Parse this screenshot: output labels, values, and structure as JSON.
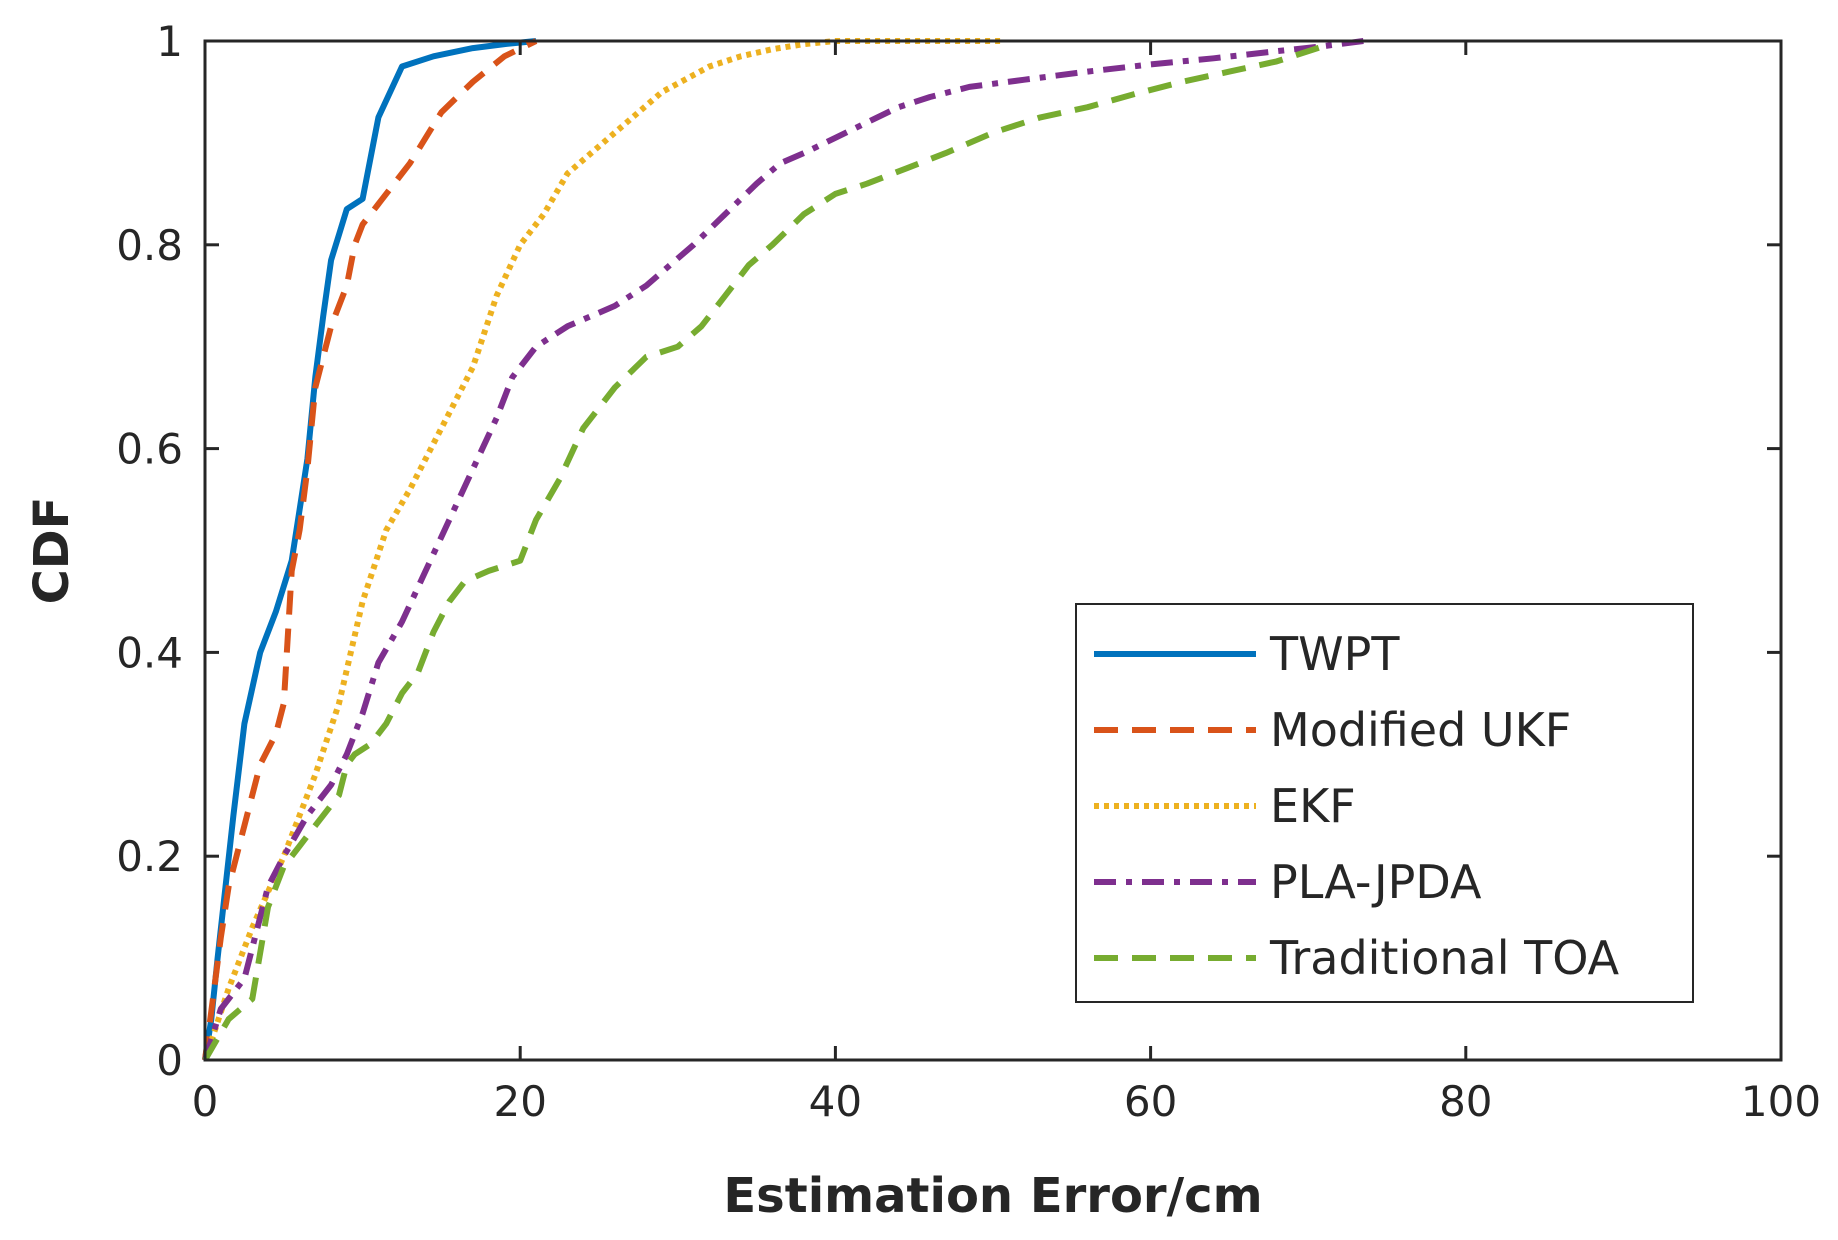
{
  "chart_data": {
    "type": "line",
    "title": "",
    "xlabel": "Estimation Error/cm",
    "ylabel": "CDF",
    "xlim": [
      0,
      100
    ],
    "ylim": [
      0,
      1
    ],
    "xticks": [
      0,
      20,
      40,
      60,
      80,
      100
    ],
    "yticks": [
      0,
      0.2,
      0.4,
      0.6,
      0.8,
      1
    ],
    "xtick_labels": [
      "0",
      "20",
      "40",
      "60",
      "80",
      "100"
    ],
    "ytick_labels": [
      "0",
      "0.2",
      "0.4",
      "0.6",
      "0.8",
      "1"
    ],
    "grid": false,
    "legend_position": "bottom-right",
    "series": [
      {
        "name": "TWPT",
        "color": "#0072BD",
        "style": "solid",
        "x": [
          0,
          0.4,
          0.8,
          1.3,
          1.8,
          2.5,
          3.5,
          4.5,
          5.5,
          6.0,
          6.5,
          7.0,
          7.5,
          8.0,
          8.5,
          9.0,
          9.5,
          10.0,
          11.0,
          12.5,
          14.5,
          17.0,
          19.0,
          21.0
        ],
        "y": [
          0,
          0.04,
          0.1,
          0.17,
          0.24,
          0.33,
          0.4,
          0.44,
          0.49,
          0.54,
          0.59,
          0.67,
          0.73,
          0.785,
          0.81,
          0.835,
          0.84,
          0.845,
          0.925,
          0.975,
          0.985,
          0.993,
          0.997,
          1.0
        ]
      },
      {
        "name": "Modified UKF",
        "color": "#D95319",
        "style": "dashed",
        "x": [
          0,
          0.5,
          1.0,
          1.5,
          2.5,
          3.5,
          4.5,
          5.0,
          5.5,
          6.0,
          6.5,
          7.0,
          8.0,
          9.0,
          9.5,
          10.0,
          11.0,
          13.0,
          15.0,
          17.0,
          19.0,
          21.0
        ],
        "y": [
          0,
          0.06,
          0.12,
          0.17,
          0.23,
          0.29,
          0.32,
          0.35,
          0.48,
          0.52,
          0.58,
          0.66,
          0.72,
          0.76,
          0.8,
          0.82,
          0.84,
          0.88,
          0.93,
          0.96,
          0.985,
          1.0
        ]
      },
      {
        "name": "EKF",
        "color": "#EDB120",
        "style": "dotted",
        "x": [
          0,
          1.5,
          3.0,
          5.0,
          7.0,
          8.5,
          10.0,
          11.5,
          13.0,
          15.0,
          17.0,
          18.5,
          20.0,
          21.5,
          23.0,
          26.0,
          29.0,
          32.0,
          34.0,
          36.0,
          38.0,
          40.0,
          45.0,
          50.5
        ],
        "y": [
          0,
          0.07,
          0.13,
          0.2,
          0.28,
          0.35,
          0.45,
          0.52,
          0.56,
          0.62,
          0.68,
          0.75,
          0.8,
          0.83,
          0.87,
          0.91,
          0.95,
          0.975,
          0.985,
          0.992,
          0.997,
          1.0,
          1.0,
          1.0
        ]
      },
      {
        "name": "PLA-JPDA",
        "color": "#7E2F8E",
        "style": "dashdot",
        "x": [
          0,
          1.0,
          2.5,
          4.0,
          5.0,
          6.5,
          8.0,
          9.0,
          10.0,
          11.0,
          12.5,
          14.0,
          15.5,
          17.0,
          18.5,
          19.5,
          21.0,
          23.0,
          26.0,
          28.0,
          29.5,
          31.0,
          33.0,
          35.0,
          36.5,
          38.0,
          40.0,
          42.0,
          44.0,
          46.0,
          48.5,
          52.0,
          56.0,
          60.0,
          64.0,
          68.0,
          71.0,
          73.5
        ],
        "y": [
          0,
          0.05,
          0.08,
          0.17,
          0.2,
          0.24,
          0.27,
          0.3,
          0.34,
          0.39,
          0.43,
          0.48,
          0.53,
          0.58,
          0.63,
          0.67,
          0.7,
          0.72,
          0.74,
          0.76,
          0.78,
          0.8,
          0.83,
          0.86,
          0.88,
          0.89,
          0.905,
          0.92,
          0.935,
          0.945,
          0.955,
          0.962,
          0.97,
          0.977,
          0.983,
          0.99,
          0.995,
          1.0
        ]
      },
      {
        "name": "Traditional TOA",
        "color": "#77AC30",
        "style": "dashed",
        "x": [
          0,
          1.5,
          3.0,
          4.0,
          5.0,
          6.0,
          7.0,
          8.5,
          9.0,
          9.5,
          10.5,
          11.5,
          12.5,
          13.5,
          14.5,
          15.5,
          16.5,
          18.0,
          20.0,
          21.0,
          22.5,
          24.0,
          26.0,
          28.0,
          30.0,
          31.5,
          33.0,
          34.5,
          36.0,
          38.0,
          40.0,
          42.0,
          44.5,
          47.0,
          50.0,
          53.0,
          56.0,
          59.0,
          62.0,
          65.0,
          68.0,
          71.0
        ],
        "y": [
          0,
          0.04,
          0.06,
          0.15,
          0.19,
          0.21,
          0.23,
          0.26,
          0.29,
          0.3,
          0.31,
          0.33,
          0.36,
          0.38,
          0.42,
          0.45,
          0.47,
          0.48,
          0.49,
          0.53,
          0.57,
          0.62,
          0.66,
          0.69,
          0.7,
          0.72,
          0.75,
          0.78,
          0.8,
          0.83,
          0.85,
          0.86,
          0.875,
          0.89,
          0.91,
          0.925,
          0.935,
          0.948,
          0.96,
          0.97,
          0.98,
          0.995
        ]
      }
    ]
  }
}
